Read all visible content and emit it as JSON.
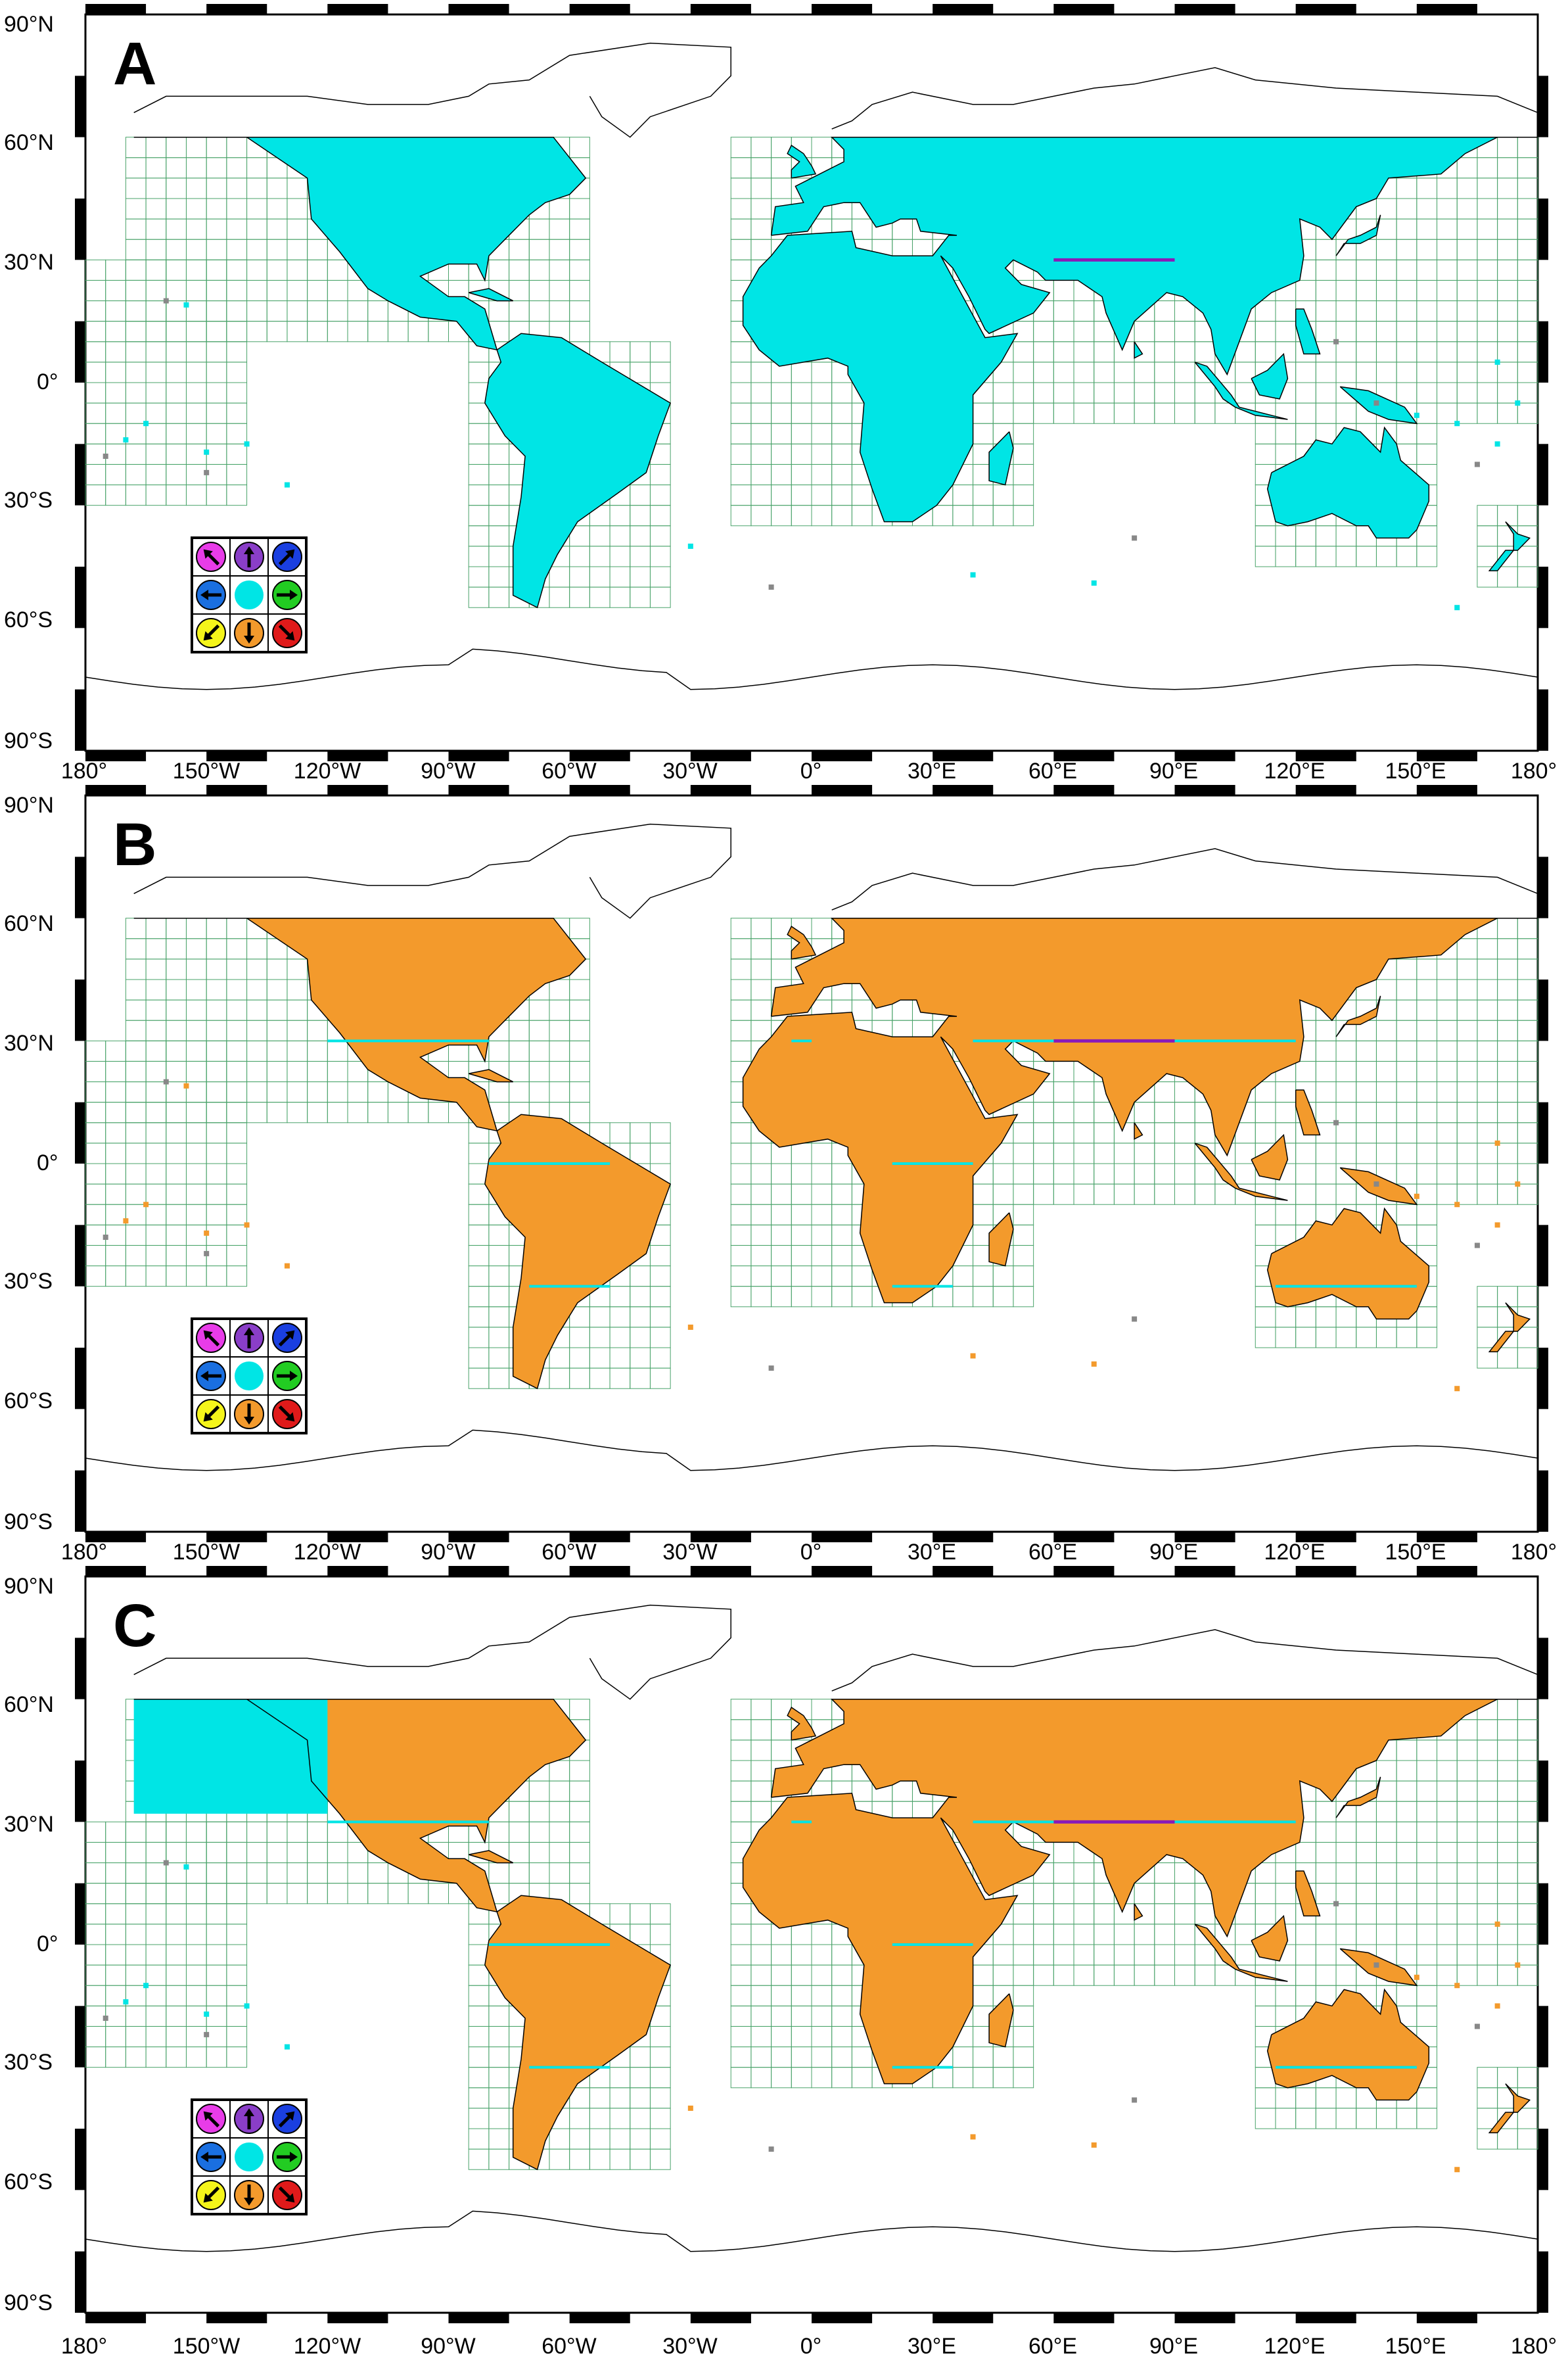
{
  "figure": {
    "panels": [
      {
        "letter": "A",
        "fill_color": "#00e5e5",
        "mixed": false
      },
      {
        "letter": "B",
        "fill_color": "#f39a2c",
        "mixed": false
      },
      {
        "letter": "C",
        "fill_color": "#f39a2c",
        "mixed": true
      }
    ],
    "lat_labels": [
      "90°N",
      "60°N",
      "30°N",
      "0°",
      "30°S",
      "60°S",
      "90°S"
    ],
    "lon_labels": [
      "180°",
      "150°W",
      "120°W",
      "90°W",
      "60°W",
      "30°W",
      "0°",
      "30°E",
      "60°E",
      "90°E",
      "120°E",
      "150°E",
      "180°"
    ],
    "colors": {
      "cyan": "#00e5e5",
      "orange": "#f39a2c",
      "purple_line": "#8a1ab8",
      "cyan_line": "#00e5e5",
      "grid_box": "#4aa36a",
      "gray_dot": "#888888",
      "coast": "#000000"
    },
    "legend": {
      "cells": [
        {
          "color": "#e83ce8",
          "icon": "arrow-up-left-icon"
        },
        {
          "color": "#8a3ec8",
          "icon": "arrow-up-icon"
        },
        {
          "color": "#1a3fe0",
          "icon": "arrow-up-right-icon"
        },
        {
          "color": "#1a6fe0",
          "icon": "arrow-left-icon"
        },
        {
          "color": "#00e5e5",
          "icon": "no-arrow-icon"
        },
        {
          "color": "#22cc22",
          "icon": "arrow-right-icon"
        },
        {
          "color": "#f5f51a",
          "icon": "arrow-down-left-icon"
        },
        {
          "color": "#f39a2c",
          "icon": "arrow-down-icon"
        },
        {
          "color": "#e01a1a",
          "icon": "arrow-down-right-icon"
        }
      ]
    }
  }
}
